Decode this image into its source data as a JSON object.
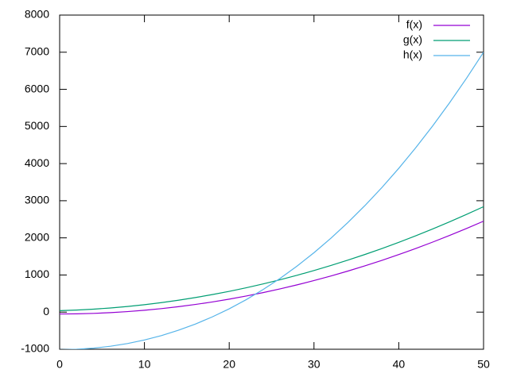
{
  "chart_data": {
    "type": "line",
    "x": [
      0,
      2,
      4,
      6,
      8,
      10,
      12,
      14,
      16,
      18,
      20,
      22,
      24,
      26,
      28,
      30,
      32,
      34,
      36,
      38,
      40,
      42,
      44,
      46,
      48,
      50
    ],
    "series": [
      {
        "name": "f(x)",
        "color": "#9400d3",
        "values": [
          -50,
          -46,
          -34,
          -14,
          14,
          50,
          94,
          146,
          206,
          274,
          350,
          434,
          526,
          626,
          734,
          850,
          974,
          1106,
          1246,
          1394,
          1550,
          1714,
          1886,
          2066,
          2254,
          2450
        ]
      },
      {
        "name": "g(x)",
        "color": "#009e73",
        "values": [
          40,
          56,
          80,
          112,
          152,
          200,
          256,
          320,
          392,
          472,
          560,
          656,
          760,
          872,
          992,
          1120,
          1256,
          1400,
          1552,
          1712,
          1880,
          2056,
          2240,
          2432,
          2632,
          2840
        ]
      },
      {
        "name": "h(x)",
        "color": "#56b4e9",
        "values": [
          -1010,
          -1000,
          -970,
          -919,
          -846,
          -750,
          -632,
          -489,
          -322,
          -129,
          89,
          335,
          608,
          909,
          1240,
          1600,
          1991,
          2413,
          2867,
          3353,
          3873,
          4427,
          5016,
          5641,
          6302,
          7000
        ]
      }
    ],
    "xlim": [
      0,
      50
    ],
    "xticks": [
      0,
      10,
      20,
      30,
      40,
      50
    ],
    "ylim": [
      -1000,
      8000
    ],
    "yticks": [
      -1000,
      0,
      1000,
      2000,
      3000,
      4000,
      5000,
      6000,
      7000,
      8000
    ],
    "legend": "top-right"
  }
}
